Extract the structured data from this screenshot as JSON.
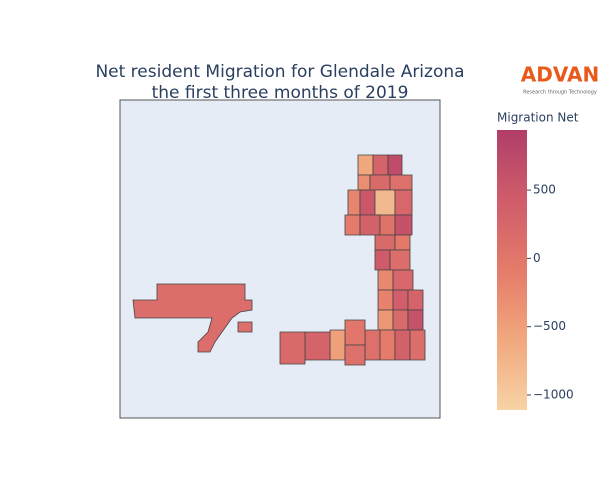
{
  "chart_data": {
    "type": "choropleth",
    "title_lines": [
      "Net resident Migration for Glendale Arizona",
      "the first three months of 2019"
    ],
    "logo_text": "ADVAN",
    "logo_tagline": "Research through Technology",
    "colorbar_title": "Migration Net",
    "colorscale": [
      "#f7d3a6",
      "#f1a87e",
      "#e57b6a",
      "#d05c6a",
      "#b03e68"
    ],
    "zlim": [
      -1110,
      940
    ],
    "zticks": [
      {
        "value": 500,
        "label": "500"
      },
      {
        "value": 0,
        "label": "0"
      },
      {
        "value": -500,
        "label": "−500"
      },
      {
        "value": -1000,
        "label": "−1000"
      }
    ],
    "values": [
      150,
      100,
      -600,
      300,
      700,
      -300,
      200,
      100,
      -200,
      500,
      -800,
      250,
      -100,
      350,
      50,
      600,
      200,
      -50,
      450,
      150,
      -250,
      250,
      -150,
      400,
      300,
      -400,
      200,
      600,
      100,
      -100,
      350,
      150,
      0,
      -500,
      300,
      200,
      100,
      350,
      250
    ]
  }
}
